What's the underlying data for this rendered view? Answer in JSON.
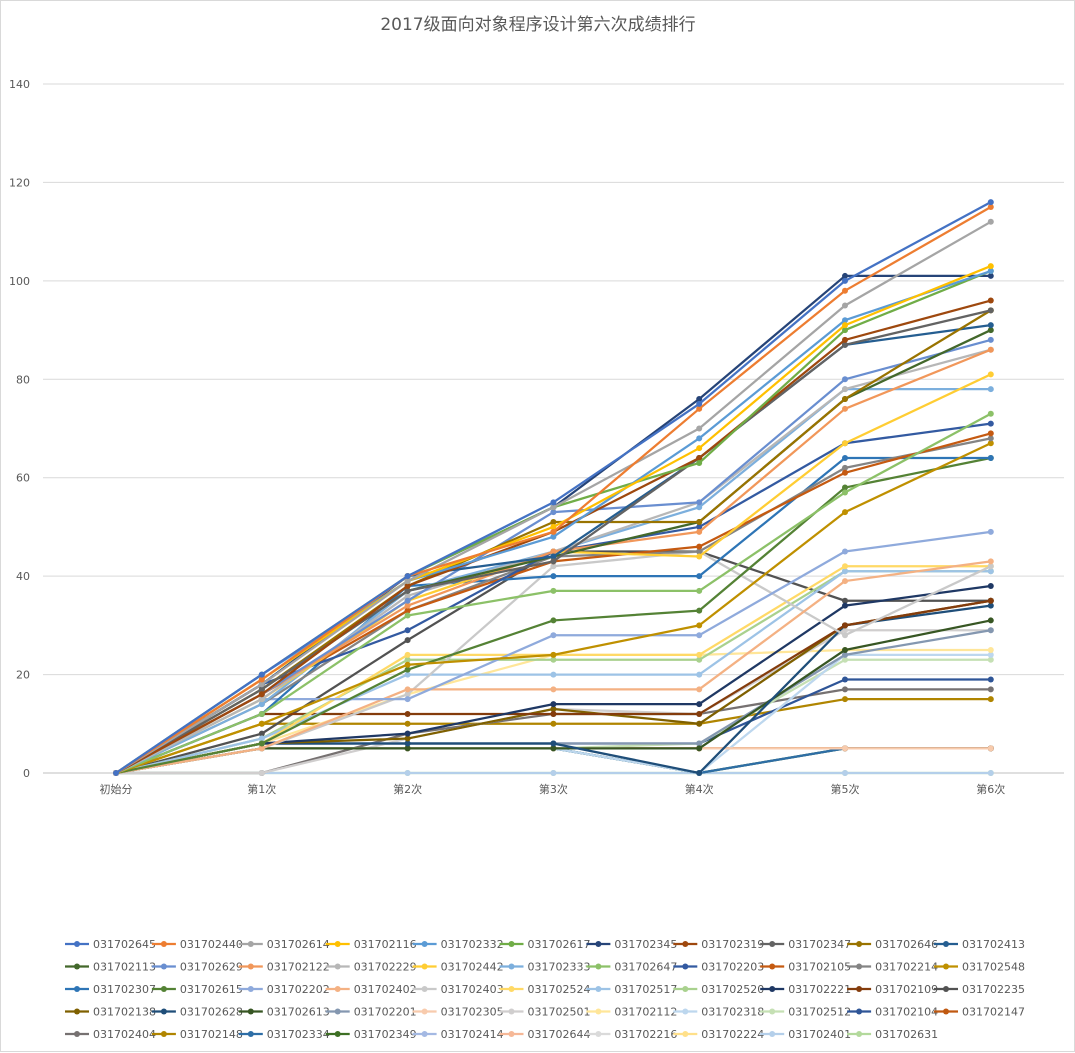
{
  "chart_data": {
    "type": "line",
    "title": "2017级面向对象程序设计第六次成绩排行",
    "categories": [
      "初始分",
      "第1次",
      "第2次",
      "第3次",
      "第4次",
      "第5次",
      "第6次"
    ],
    "ylim": [
      0,
      140
    ],
    "yticks": [
      0,
      20,
      40,
      60,
      80,
      100,
      120,
      140
    ],
    "grid": true,
    "legend_position": "bottom",
    "series": [
      {
        "name": "031702645",
        "color": "#4472C4",
        "values": [
          0,
          20,
          40,
          55,
          75,
          100,
          116
        ]
      },
      {
        "name": "031702440",
        "color": "#ED7D31",
        "values": [
          0,
          19,
          40,
          49,
          74,
          98,
          115
        ]
      },
      {
        "name": "031702614",
        "color": "#A5A5A5",
        "values": [
          0,
          18,
          39,
          54,
          70,
          95,
          112
        ]
      },
      {
        "name": "031702116",
        "color": "#FFC000",
        "values": [
          0,
          19,
          39,
          50,
          66,
          91,
          103
        ]
      },
      {
        "name": "031702332",
        "color": "#5B9BD5",
        "values": [
          0,
          20,
          39,
          48,
          68,
          92,
          102
        ]
      },
      {
        "name": "031702617",
        "color": "#70AD47",
        "values": [
          0,
          20,
          40,
          54,
          63,
          90,
          102
        ]
      },
      {
        "name": "031702345",
        "color": "#264478",
        "values": [
          0,
          18,
          40,
          54,
          76,
          101,
          101
        ]
      },
      {
        "name": "031702319",
        "color": "#9E480E",
        "values": [
          0,
          16,
          38,
          49,
          64,
          88,
          96
        ]
      },
      {
        "name": "031702347",
        "color": "#636363",
        "values": [
          0,
          17,
          37,
          43,
          64,
          87,
          94
        ]
      },
      {
        "name": "031702646",
        "color": "#997300",
        "values": [
          0,
          17,
          38,
          51,
          51,
          76,
          94
        ]
      },
      {
        "name": "031702413",
        "color": "#255E91",
        "values": [
          0,
          18,
          40,
          44,
          64,
          87,
          91
        ]
      },
      {
        "name": "031702113",
        "color": "#43682B",
        "values": [
          0,
          17,
          37,
          44,
          51,
          76,
          90
        ]
      },
      {
        "name": "031702629",
        "color": "#698ED0",
        "values": [
          0,
          16,
          35,
          53,
          55,
          80,
          88
        ]
      },
      {
        "name": "031702122",
        "color": "#F1975A",
        "values": [
          0,
          16,
          34,
          45,
          49,
          74,
          86
        ]
      },
      {
        "name": "031702229",
        "color": "#B7B7B7",
        "values": [
          0,
          15,
          36,
          45,
          55,
          78,
          86
        ]
      },
      {
        "name": "031702442",
        "color": "#FFCD33",
        "values": [
          0,
          15,
          35,
          45,
          44,
          67,
          81
        ]
      },
      {
        "name": "031702333",
        "color": "#7CAFDD",
        "values": [
          0,
          14,
          37,
          45,
          54,
          78,
          78
        ]
      },
      {
        "name": "031702647",
        "color": "#8CC168",
        "values": [
          0,
          12,
          32,
          37,
          37,
          57,
          73
        ]
      },
      {
        "name": "031702203",
        "color": "#335AA1",
        "values": [
          0,
          18,
          29,
          45,
          50,
          67,
          71
        ]
      },
      {
        "name": "031702105",
        "color": "#C55A11",
        "values": [
          0,
          16,
          33,
          43,
          46,
          61,
          69
        ]
      },
      {
        "name": "031702214",
        "color": "#848484",
        "values": [
          0,
          14,
          33,
          44,
          45,
          62,
          68
        ]
      },
      {
        "name": "031702548",
        "color": "#BF9000",
        "values": [
          0,
          10,
          22,
          24,
          30,
          53,
          67
        ]
      },
      {
        "name": "031702307",
        "color": "#2E75B6",
        "values": [
          0,
          12,
          38,
          40,
          40,
          64,
          64
        ]
      },
      {
        "name": "031702615",
        "color": "#548235",
        "values": [
          0,
          6,
          21,
          31,
          33,
          58,
          64
        ]
      },
      {
        "name": "031702202",
        "color": "#8FAADC",
        "values": [
          0,
          15,
          15,
          28,
          28,
          45,
          49
        ]
      },
      {
        "name": "031702402",
        "color": "#F4B183",
        "values": [
          0,
          5,
          17,
          17,
          17,
          39,
          43
        ]
      },
      {
        "name": "031702403",
        "color": "#C9C9C9",
        "values": [
          0,
          5,
          16,
          42,
          45,
          28,
          42
        ]
      },
      {
        "name": "031702524",
        "color": "#FFD966",
        "values": [
          0,
          6,
          24,
          24,
          24,
          42,
          42
        ]
      },
      {
        "name": "031702517",
        "color": "#9DC3E6",
        "values": [
          0,
          7,
          20,
          20,
          20,
          41,
          41
        ]
      },
      {
        "name": "031702520",
        "color": "#A9D18E",
        "values": [
          0,
          7,
          23,
          23,
          23,
          41,
          41
        ]
      },
      {
        "name": "031702221",
        "color": "#1F3864",
        "values": [
          0,
          6,
          8,
          14,
          14,
          34,
          38
        ]
      },
      {
        "name": "031702109",
        "color": "#843C0C",
        "values": [
          0,
          12,
          12,
          12,
          12,
          30,
          35
        ]
      },
      {
        "name": "031702235",
        "color": "#525252",
        "values": [
          0,
          8,
          27,
          45,
          45,
          35,
          35
        ]
      },
      {
        "name": "031702138",
        "color": "#7F6000",
        "values": [
          0,
          6,
          7,
          13,
          10,
          30,
          35
        ]
      },
      {
        "name": "031702628",
        "color": "#1F4E79",
        "values": [
          0,
          6,
          6,
          6,
          0,
          30,
          34
        ]
      },
      {
        "name": "031702613",
        "color": "#375623",
        "values": [
          0,
          5,
          5,
          5,
          5,
          25,
          31
        ]
      },
      {
        "name": "031702201",
        "color": "#8497B0",
        "values": [
          0,
          6,
          6,
          6,
          6,
          24,
          29
        ]
      },
      {
        "name": "031702305",
        "color": "#F8CBAD",
        "values": [
          0,
          5,
          5,
          5,
          5,
          5,
          5
        ]
      },
      {
        "name": "031702501",
        "color": "#D0CECE",
        "values": [
          0,
          0,
          7,
          13,
          12,
          29,
          29
        ]
      },
      {
        "name": "031702112",
        "color": "#FFE699",
        "values": [
          0,
          6,
          16,
          24,
          24,
          25,
          25
        ]
      },
      {
        "name": "031702318",
        "color": "#BDD7EE",
        "values": [
          0,
          5,
          5,
          5,
          0,
          24,
          24
        ]
      },
      {
        "name": "031702512",
        "color": "#C5E0B4",
        "values": [
          0,
          5,
          5,
          5,
          6,
          23,
          23
        ]
      },
      {
        "name": "031702104",
        "color": "#2F5597",
        "values": [
          0,
          6,
          6,
          6,
          6,
          19,
          19
        ]
      },
      {
        "name": "031702147",
        "color": "#C05911",
        "values": [
          0,
          5,
          5,
          5,
          5,
          5,
          5
        ]
      },
      {
        "name": "031702404",
        "color": "#767171",
        "values": [
          0,
          0,
          8,
          12,
          12,
          17,
          17
        ]
      },
      {
        "name": "031702148",
        "color": "#B08500",
        "values": [
          0,
          10,
          10,
          10,
          10,
          15,
          15
        ]
      },
      {
        "name": "031702334",
        "color": "#2E6EA6",
        "values": [
          0,
          5,
          5,
          5,
          0,
          5,
          5
        ]
      },
      {
        "name": "031702349",
        "color": "#3D6F24",
        "values": [
          0,
          5,
          5,
          5,
          0,
          5,
          5
        ]
      },
      {
        "name": "031702414",
        "color": "#A4B9E3",
        "values": [
          0,
          5,
          5,
          5,
          0,
          5,
          5
        ]
      },
      {
        "name": "031702644",
        "color": "#F6B897",
        "values": [
          0,
          5,
          5,
          5,
          5,
          5,
          5
        ]
      },
      {
        "name": "031702216",
        "color": "#DADADA",
        "values": [
          0,
          5,
          5,
          5,
          5,
          5,
          5
        ]
      },
      {
        "name": "031702224",
        "color": "#FFE08A",
        "values": [
          0,
          5,
          5,
          5,
          5,
          5,
          5
        ]
      },
      {
        "name": "031702401",
        "color": "#B4CFEA",
        "values": [
          0,
          0,
          0,
          0,
          0,
          0,
          0
        ]
      },
      {
        "name": "031702631",
        "color": "#B3D99C",
        "values": [
          0,
          0,
          0,
          0,
          0,
          0,
          0
        ]
      }
    ]
  }
}
